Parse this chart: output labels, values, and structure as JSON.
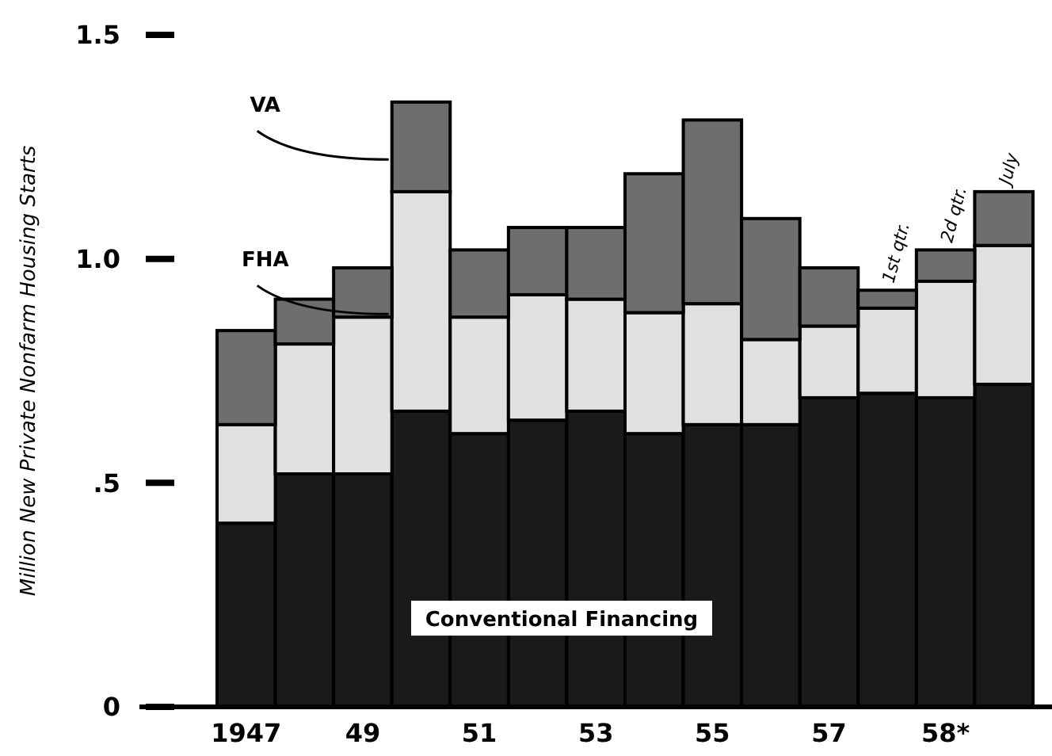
{
  "chart_data": {
    "type": "bar",
    "stacked": true,
    "ylabel": "Million New Private Nonfarm Housing Starts",
    "categories": [
      "1947",
      null,
      "49",
      null,
      "51",
      null,
      "53",
      null,
      "55",
      null,
      "57",
      "1st qtr.",
      "2d qtr.",
      "July"
    ],
    "series": [
      {
        "name": "Conventional Financing",
        "color": "#1a1a1a",
        "values": [
          0.41,
          0.52,
          0.52,
          0.66,
          0.61,
          0.64,
          0.66,
          0.61,
          0.63,
          0.63,
          0.69,
          0.7,
          0.69,
          0.72
        ]
      },
      {
        "name": "FHA",
        "color": "#e0e0e0",
        "values": [
          0.22,
          0.29,
          0.35,
          0.49,
          0.26,
          0.28,
          0.25,
          0.27,
          0.27,
          0.19,
          0.16,
          0.19,
          0.26,
          0.31
        ]
      },
      {
        "name": "VA",
        "color": "#6e6e6e",
        "values": [
          0.21,
          0.1,
          0.11,
          0.2,
          0.15,
          0.15,
          0.16,
          0.31,
          0.41,
          0.27,
          0.13,
          0.04,
          0.07,
          0.12
        ]
      }
    ],
    "ylim": [
      0,
      1.5
    ],
    "yticks": [
      0,
      {
        "value": 0.5,
        "label": ".5"
      },
      {
        "value": 1,
        "label": "1.0"
      },
      1.5
    ],
    "annotations": [
      "58*"
    ]
  }
}
